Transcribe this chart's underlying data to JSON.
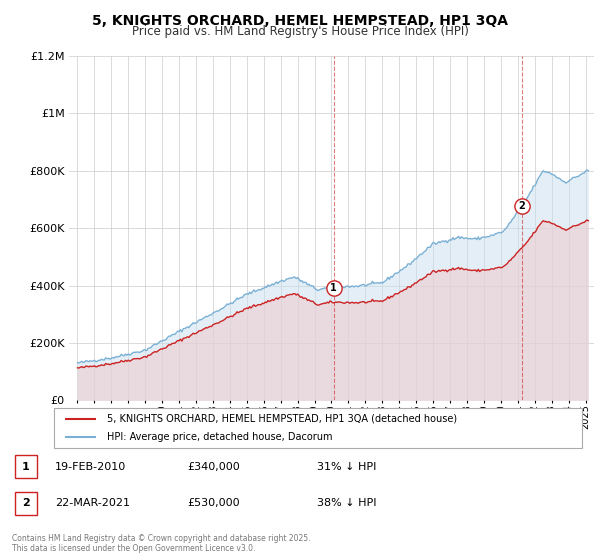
{
  "title": "5, KNIGHTS ORCHARD, HEMEL HEMPSTEAD, HP1 3QA",
  "subtitle": "Price paid vs. HM Land Registry's House Price Index (HPI)",
  "title_fontsize": 10,
  "subtitle_fontsize": 8.5,
  "background_color": "#ffffff",
  "grid_color": "#cccccc",
  "hpi_color": "#7ab0d4",
  "price_color": "#cc2222",
  "hpi_fill_color": "#c8dff0",
  "price_fill_color": "#f0c8c8",
  "sale1_date_x": 2010.13,
  "sale1_price": 340000,
  "sale2_date_x": 2021.22,
  "sale2_price": 530000,
  "xmin": 1994.5,
  "xmax": 2025.5,
  "ymin": 0,
  "ymax": 1200000,
  "yticks": [
    0,
    200000,
    400000,
    600000,
    800000,
    1000000,
    1200000
  ],
  "legend_line1": "5, KNIGHTS ORCHARD, HEMEL HEMPSTEAD, HP1 3QA (detached house)",
  "legend_line2": "HPI: Average price, detached house, Dacorum",
  "annotation1_date": "19-FEB-2010",
  "annotation1_price": "£340,000",
  "annotation1_pct": "31% ↓ HPI",
  "annotation2_date": "22-MAR-2021",
  "annotation2_price": "£530,000",
  "annotation2_pct": "38% ↓ HPI",
  "footer": "Contains HM Land Registry data © Crown copyright and database right 2025.\nThis data is licensed under the Open Government Licence v3.0."
}
